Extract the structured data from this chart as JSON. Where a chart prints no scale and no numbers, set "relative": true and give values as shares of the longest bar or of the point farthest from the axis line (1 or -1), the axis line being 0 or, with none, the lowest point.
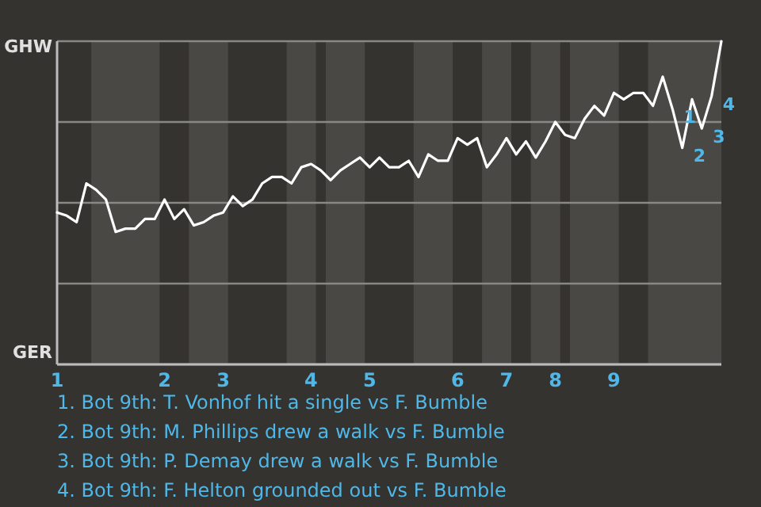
{
  "chart_data": {
    "type": "line",
    "relative": true,
    "categories": [
      "1",
      null,
      null,
      null,
      null,
      null,
      null,
      null,
      null,
      null,
      null,
      "2",
      null,
      null,
      null,
      null,
      null,
      "3",
      null,
      null,
      null,
      null,
      null,
      null,
      null,
      null,
      "4",
      null,
      null,
      null,
      null,
      null,
      "5",
      null,
      null,
      null,
      null,
      null,
      null,
      null,
      null,
      "6",
      null,
      null,
      null,
      null,
      "7",
      null,
      null,
      null,
      null,
      "8",
      null,
      null,
      null,
      null,
      null,
      "9",
      null,
      null,
      null,
      null,
      null,
      null,
      null,
      null,
      null,
      null,
      null
    ],
    "grid": "y",
    "marker": "none",
    "line_style": "solid",
    "series": [
      {
        "color": "#ffffff",
        "values": [
          0.47,
          0.46,
          0.44,
          0.56,
          0.54,
          0.51,
          0.41,
          0.42,
          0.42,
          0.45,
          0.45,
          0.51,
          0.45,
          0.48,
          0.43,
          0.44,
          0.46,
          0.47,
          0.52,
          0.49,
          0.51,
          0.56,
          0.58,
          0.58,
          0.56,
          0.61,
          0.62,
          0.6,
          0.57,
          0.6,
          0.62,
          0.64,
          0.61,
          0.64,
          0.61,
          0.61,
          0.63,
          0.58,
          0.65,
          0.63,
          0.63,
          0.7,
          0.68,
          0.7,
          0.61,
          0.65,
          0.7,
          0.65,
          0.69,
          0.64,
          0.69,
          0.75,
          0.71,
          0.7,
          0.76,
          0.8,
          0.77,
          0.84,
          0.82,
          0.84,
          0.84,
          0.8,
          0.89,
          0.79,
          0.67,
          0.82,
          0.73,
          0.83,
          1.0
        ]
      }
    ],
    "annotations": [
      "1",
      "2",
      "3",
      "4",
      "GHW",
      "GER",
      "1. Bot 9th: T. Vonhof hit a single vs F. Bumble",
      "2. Bot 9th: M. Phillips drew a walk vs F. Bumble",
      "3. Bot 9th: P. Demay drew a walk vs F. Bumble",
      "4. Bot 9th: F. Helton grounded out vs F. Bumble"
    ]
  }
}
